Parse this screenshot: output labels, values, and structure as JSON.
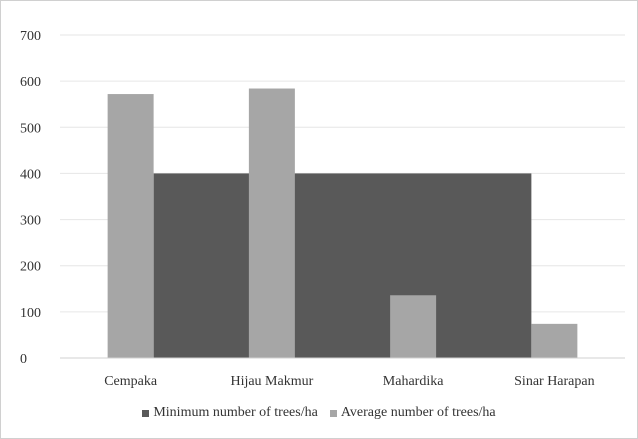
{
  "chart_data": {
    "type": "bar",
    "categories": [
      "Cempaka",
      "Hijau Makmur",
      "Mahardika",
      "Sinar Harapan"
    ],
    "series": [
      {
        "name": "Minimum number of trees/ha",
        "values": [
          400,
          400,
          400,
          400
        ],
        "color": "#595959",
        "render": "area"
      },
      {
        "name": "Average number of trees/ha",
        "values": [
          572,
          584,
          136,
          74
        ],
        "color": "#a6a6a6",
        "render": "bar"
      }
    ],
    "yticks": [
      "0",
      "100",
      "200",
      "300",
      "400",
      "500",
      "600",
      "700"
    ],
    "ylim": [
      0,
      700
    ],
    "grid": true,
    "legend_position": "bottom"
  }
}
